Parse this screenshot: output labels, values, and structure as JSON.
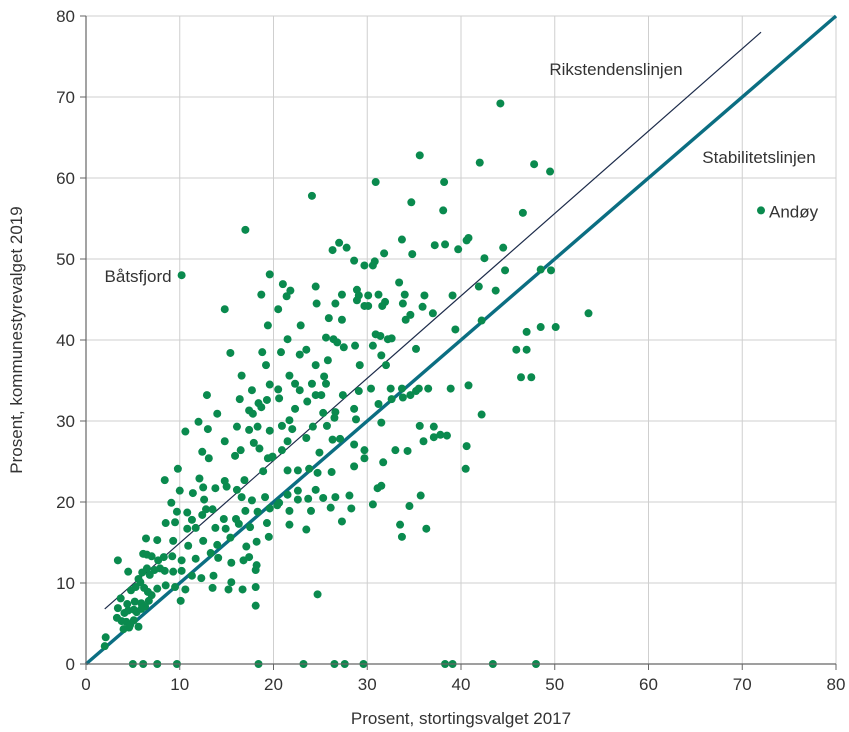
{
  "chart_data": {
    "type": "scatter",
    "title": "",
    "xlabel": "Prosent, stortingsvalget 2017",
    "ylabel": "Prosent, kommunestyrevalget 2019",
    "xlim": [
      0,
      80
    ],
    "ylim": [
      0,
      80
    ],
    "xticks": [
      "0",
      "10",
      "20",
      "30",
      "40",
      "50",
      "60",
      "70",
      "80"
    ],
    "yticks": [
      "0",
      "10",
      "20",
      "30",
      "40",
      "50",
      "60",
      "70",
      "80"
    ],
    "grid": true,
    "colors": {
      "points": "#0a8a4e",
      "stability": "#0b6e82",
      "trend": "#1c2b4a",
      "grid": "#cfcfcf",
      "axis": "#666666"
    },
    "lines": [
      {
        "label": "Rikstendenslinjen",
        "x": [
          2,
          72
        ],
        "y": [
          6.8,
          78
        ]
      },
      {
        "label": "Stabilitetslinjen",
        "x": [
          0,
          80
        ],
        "y": [
          0,
          80
        ]
      }
    ],
    "annotations": [
      {
        "text": "Båtsfjord",
        "x": 10.2,
        "y": 48
      },
      {
        "text": "Andøy",
        "x": 72,
        "y": 56
      }
    ],
    "points": [
      [
        10.2,
        48
      ],
      [
        72,
        56
      ],
      [
        44.2,
        69.2
      ],
      [
        35.6,
        62.8
      ],
      [
        42,
        61.9
      ],
      [
        47.8,
        61.7
      ],
      [
        49.5,
        60.8
      ],
      [
        30.9,
        59.5
      ],
      [
        38.2,
        59.5
      ],
      [
        24.1,
        57.8
      ],
      [
        34.7,
        57
      ],
      [
        38.1,
        56
      ],
      [
        46.6,
        55.7
      ],
      [
        17,
        53.6
      ],
      [
        27,
        52
      ],
      [
        33.7,
        52.4
      ],
      [
        37.2,
        51.7
      ],
      [
        38.3,
        51.8
      ],
      [
        40.6,
        52.3
      ],
      [
        40.8,
        52.6
      ],
      [
        26.3,
        51.1
      ],
      [
        27.8,
        51.4
      ],
      [
        31.8,
        50.7
      ],
      [
        34.8,
        50.6
      ],
      [
        39.7,
        51.2
      ],
      [
        44.5,
        51.4
      ],
      [
        29.7,
        49.2
      ],
      [
        30.6,
        49.2
      ],
      [
        30.8,
        49.7
      ],
      [
        28.6,
        49.8
      ],
      [
        42.5,
        50.1
      ],
      [
        19.6,
        48.1
      ],
      [
        21,
        46.9
      ],
      [
        24.5,
        46.6
      ],
      [
        27.3,
        45.6
      ],
      [
        28.9,
        46.2
      ],
      [
        29.1,
        45.5
      ],
      [
        30.1,
        45.5
      ],
      [
        33.4,
        47.1
      ],
      [
        31.2,
        45.6
      ],
      [
        31.9,
        44.7
      ],
      [
        36.1,
        45.5
      ],
      [
        39.1,
        45.5
      ],
      [
        41.9,
        46.6
      ],
      [
        44.7,
        48.6
      ],
      [
        48.5,
        48.7
      ],
      [
        49.6,
        48.6
      ],
      [
        14.8,
        43.8
      ],
      [
        18.7,
        45.6
      ],
      [
        21.4,
        45.4
      ],
      [
        21.8,
        46.1
      ],
      [
        24.6,
        44.5
      ],
      [
        26.6,
        44.5
      ],
      [
        28.9,
        44.9
      ],
      [
        29.7,
        44.2
      ],
      [
        31.6,
        44.2
      ],
      [
        34,
        45.6
      ],
      [
        35.9,
        44.1
      ],
      [
        37,
        43.3
      ],
      [
        43.7,
        46.1
      ],
      [
        20.5,
        43.8
      ],
      [
        19.4,
        41.8
      ],
      [
        25.9,
        42.7
      ],
      [
        27.3,
        42.5
      ],
      [
        30.1,
        44.2
      ],
      [
        34.6,
        43.1
      ],
      [
        33.8,
        44.5
      ],
      [
        22.9,
        41.8
      ],
      [
        30.9,
        40.7
      ],
      [
        31.4,
        40.5
      ],
      [
        32.2,
        40.1
      ],
      [
        34.1,
        42.5
      ],
      [
        39.4,
        41.3
      ],
      [
        42.2,
        42.4
      ],
      [
        47,
        41
      ],
      [
        48.5,
        41.6
      ],
      [
        50.1,
        41.6
      ],
      [
        53.6,
        43.3
      ],
      [
        15.4,
        38.4
      ],
      [
        18.8,
        38.5
      ],
      [
        20.8,
        38.5
      ],
      [
        21.5,
        40.1
      ],
      [
        22.8,
        38.2
      ],
      [
        23.5,
        38.8
      ],
      [
        25.6,
        40.3
      ],
      [
        26.4,
        40.1
      ],
      [
        26.8,
        39.7
      ],
      [
        27.5,
        39.1
      ],
      [
        28.7,
        39.3
      ],
      [
        30.6,
        39.3
      ],
      [
        31.5,
        38.1
      ],
      [
        32.6,
        40.2
      ],
      [
        35.2,
        38.9
      ],
      [
        45.9,
        38.8
      ],
      [
        47,
        38.8
      ],
      [
        16.6,
        35.6
      ],
      [
        19.2,
        36.9
      ],
      [
        21.7,
        35.6
      ],
      [
        22.3,
        34.6
      ],
      [
        24.1,
        34.6
      ],
      [
        24.5,
        36.9
      ],
      [
        25.4,
        35.5
      ],
      [
        25.8,
        37.5
      ],
      [
        29.2,
        36.9
      ],
      [
        32,
        36.9
      ],
      [
        46.4,
        35.4
      ],
      [
        47.5,
        35.4
      ],
      [
        17.7,
        33.8
      ],
      [
        18.4,
        32.2
      ],
      [
        19.6,
        34.5
      ],
      [
        20.5,
        33.9
      ],
      [
        22.8,
        33.8
      ],
      [
        23.6,
        32.4
      ],
      [
        24.5,
        33.2
      ],
      [
        25.1,
        33.2
      ],
      [
        25.6,
        34.6
      ],
      [
        27.4,
        33.2
      ],
      [
        29.1,
        33.7
      ],
      [
        30.4,
        34
      ],
      [
        32.5,
        34
      ],
      [
        33.7,
        34
      ],
      [
        35.5,
        34
      ],
      [
        36.5,
        34
      ],
      [
        38.9,
        34
      ],
      [
        40.8,
        34.4
      ],
      [
        12.9,
        33.2
      ],
      [
        16.4,
        32.7
      ],
      [
        17.4,
        31.3
      ],
      [
        17.8,
        30.9
      ],
      [
        18.7,
        31.7
      ],
      [
        19.3,
        32.6
      ],
      [
        20.6,
        32.8
      ],
      [
        22.3,
        31.5
      ],
      [
        25.3,
        31
      ],
      [
        26.6,
        31.1
      ],
      [
        28.6,
        31.5
      ],
      [
        31.2,
        32.1
      ],
      [
        32.6,
        32.7
      ],
      [
        33.8,
        32.9
      ],
      [
        34.6,
        33.2
      ],
      [
        35.2,
        33.7
      ],
      [
        10.6,
        28.7
      ],
      [
        12,
        29.9
      ],
      [
        13,
        29
      ],
      [
        14,
        30.9
      ],
      [
        16.1,
        29.3
      ],
      [
        17.4,
        28.9
      ],
      [
        18.3,
        29.3
      ],
      [
        19.6,
        28.8
      ],
      [
        20.9,
        29.4
      ],
      [
        21.7,
        30.1
      ],
      [
        22,
        29
      ],
      [
        24.2,
        29.3
      ],
      [
        25.7,
        29.4
      ],
      [
        26.5,
        30.4
      ],
      [
        28.8,
        30.2
      ],
      [
        31.5,
        29.8
      ],
      [
        35.6,
        29.4
      ],
      [
        37.1,
        29.3
      ],
      [
        38.5,
        28.2
      ],
      [
        42.2,
        30.8
      ],
      [
        12.4,
        26.2
      ],
      [
        13.1,
        25.4
      ],
      [
        14.8,
        27.5
      ],
      [
        15.9,
        25.7
      ],
      [
        16.5,
        26.4
      ],
      [
        17.9,
        27.3
      ],
      [
        18.5,
        26.6
      ],
      [
        19.4,
        25.4
      ],
      [
        19.9,
        25.6
      ],
      [
        20.9,
        26.4
      ],
      [
        21.5,
        27.5
      ],
      [
        23.5,
        27.9
      ],
      [
        24.9,
        26.1
      ],
      [
        26.3,
        27.7
      ],
      [
        27.1,
        27.8
      ],
      [
        28.6,
        27.1
      ],
      [
        29.7,
        26.4
      ],
      [
        33,
        26.4
      ],
      [
        34.3,
        26.3
      ],
      [
        36,
        27.5
      ],
      [
        37.1,
        28
      ],
      [
        37.8,
        28.3
      ],
      [
        40.6,
        26.9
      ],
      [
        9.8,
        24.1
      ],
      [
        12.1,
        22.9
      ],
      [
        12.5,
        21.8
      ],
      [
        14.8,
        22.6
      ],
      [
        16.1,
        21.5
      ],
      [
        16.9,
        22.7
      ],
      [
        18.9,
        23.8
      ],
      [
        19.8,
        25.5
      ],
      [
        21.5,
        23.9
      ],
      [
        22.6,
        23.9
      ],
      [
        23.8,
        24.1
      ],
      [
        24.7,
        23.6
      ],
      [
        26.2,
        23.7
      ],
      [
        28.6,
        24.4
      ],
      [
        29.7,
        25.4
      ],
      [
        31.7,
        24.9
      ],
      [
        40.5,
        24.1
      ],
      [
        8.4,
        22.7
      ],
      [
        10,
        21.4
      ],
      [
        11.4,
        21.1
      ],
      [
        12.6,
        20.3
      ],
      [
        13.8,
        21.7
      ],
      [
        15,
        21.9
      ],
      [
        16.6,
        20.6
      ],
      [
        17.7,
        20.2
      ],
      [
        19.1,
        20.6
      ],
      [
        20.6,
        19.9
      ],
      [
        21.5,
        20.9
      ],
      [
        22.6,
        21.4
      ],
      [
        23.7,
        20.4
      ],
      [
        24.5,
        21.5
      ],
      [
        25.3,
        20.5
      ],
      [
        26.6,
        20.6
      ],
      [
        28.1,
        20.8
      ],
      [
        31.1,
        21.7
      ],
      [
        31.5,
        22
      ],
      [
        35.7,
        20.8
      ],
      [
        9.1,
        19.9
      ],
      [
        9.7,
        18.8
      ],
      [
        10.8,
        18.7
      ],
      [
        11.3,
        17.8
      ],
      [
        12.4,
        18.4
      ],
      [
        12.8,
        19.1
      ],
      [
        13.5,
        19.1
      ],
      [
        14.7,
        17.9
      ],
      [
        16,
        17.9
      ],
      [
        17,
        18.9
      ],
      [
        18.3,
        18.8
      ],
      [
        19.6,
        19.2
      ],
      [
        20.4,
        19.6
      ],
      [
        21.7,
        18.9
      ],
      [
        22.6,
        20.3
      ],
      [
        24,
        18.9
      ],
      [
        26.1,
        19.3
      ],
      [
        28.3,
        19.2
      ],
      [
        30.6,
        19.7
      ],
      [
        34.5,
        19.5
      ],
      [
        8.5,
        17.4
      ],
      [
        9.5,
        17.5
      ],
      [
        10.8,
        16.7
      ],
      [
        11.7,
        16.8
      ],
      [
        13.8,
        16.8
      ],
      [
        14.9,
        16.7
      ],
      [
        16.3,
        17.3
      ],
      [
        17.5,
        16.9
      ],
      [
        19.3,
        17.4
      ],
      [
        21.7,
        17.2
      ],
      [
        23.5,
        16.6
      ],
      [
        27.3,
        17.6
      ],
      [
        33.5,
        17.2
      ],
      [
        36.3,
        16.7
      ],
      [
        6.4,
        15.5
      ],
      [
        7.6,
        15.3
      ],
      [
        9.3,
        15.2
      ],
      [
        10.9,
        14.6
      ],
      [
        12.5,
        15.2
      ],
      [
        14,
        14.7
      ],
      [
        15.4,
        15.6
      ],
      [
        17.1,
        14.5
      ],
      [
        18.2,
        15.1
      ],
      [
        19.5,
        15.7
      ],
      [
        33.7,
        15.7
      ],
      [
        6.1,
        13.6
      ],
      [
        6.5,
        13.5
      ],
      [
        7,
        13.3
      ],
      [
        7.7,
        12.8
      ],
      [
        8.3,
        13.2
      ],
      [
        9.2,
        13.3
      ],
      [
        10.2,
        12.8
      ],
      [
        11.7,
        13
      ],
      [
        13.3,
        13.7
      ],
      [
        14.1,
        13.1
      ],
      [
        15.5,
        12.5
      ],
      [
        16.8,
        12.8
      ],
      [
        17.4,
        13.2
      ],
      [
        18.2,
        12.2
      ],
      [
        3.4,
        12.8
      ],
      [
        4.5,
        11.4
      ],
      [
        5.6,
        10.5
      ],
      [
        6,
        11.3
      ],
      [
        6.5,
        11.8
      ],
      [
        6.8,
        11
      ],
      [
        7.3,
        11.6
      ],
      [
        7.9,
        11.8
      ],
      [
        8.4,
        11.5
      ],
      [
        9.3,
        11.4
      ],
      [
        10.2,
        11.5
      ],
      [
        11.3,
        10.9
      ],
      [
        12.3,
        10.6
      ],
      [
        13.6,
        10.9
      ],
      [
        15.5,
        10.1
      ],
      [
        18.1,
        11.6
      ],
      [
        4.8,
        9.1
      ],
      [
        5.3,
        9.5
      ],
      [
        5.8,
        10.1
      ],
      [
        6.2,
        9.4
      ],
      [
        6.6,
        8.9
      ],
      [
        7,
        8.5
      ],
      [
        7.6,
        9.3
      ],
      [
        8.5,
        9.7
      ],
      [
        9.5,
        9.5
      ],
      [
        10.6,
        9.2
      ],
      [
        13.5,
        9.4
      ],
      [
        15.2,
        9.2
      ],
      [
        16.7,
        9.2
      ],
      [
        18.1,
        9.5
      ],
      [
        3.7,
        8.1
      ],
      [
        4.4,
        7.4
      ],
      [
        5.2,
        7.7
      ],
      [
        5.9,
        7.5
      ],
      [
        6.3,
        7.1
      ],
      [
        6.7,
        7.8
      ],
      [
        10.1,
        7.8
      ],
      [
        18.1,
        7.2
      ],
      [
        24.7,
        8.6
      ],
      [
        3.4,
        6.9
      ],
      [
        4.1,
        6.3
      ],
      [
        4.5,
        6.6
      ],
      [
        5.1,
        6.7
      ],
      [
        5.4,
        6.4
      ],
      [
        5.9,
        6.8
      ],
      [
        3.3,
        5.7
      ],
      [
        3.8,
        5.3
      ],
      [
        4.3,
        5.2
      ],
      [
        4.7,
        4.8
      ],
      [
        5.1,
        5.4
      ],
      [
        5.6,
        4.6
      ],
      [
        4,
        4.3
      ],
      [
        4.6,
        4.5
      ],
      [
        2.1,
        3.3
      ],
      [
        2,
        2.2
      ],
      [
        5,
        0
      ],
      [
        6.1,
        0
      ],
      [
        7.6,
        0
      ],
      [
        9.7,
        0
      ],
      [
        18.4,
        0
      ],
      [
        23.2,
        0
      ],
      [
        26.5,
        0
      ],
      [
        27.6,
        0
      ],
      [
        29.6,
        0
      ],
      [
        38.3,
        0
      ],
      [
        39.1,
        0
      ],
      [
        43.4,
        0
      ],
      [
        48,
        0
      ]
    ]
  }
}
